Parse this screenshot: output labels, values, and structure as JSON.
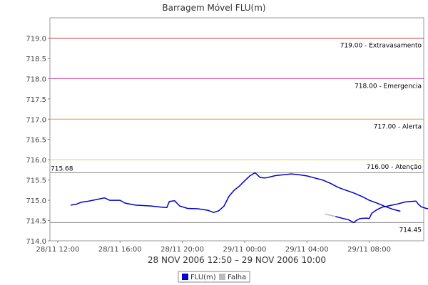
{
  "chart_data": {
    "type": "line",
    "title": "Barragem Móvel FLU(m)",
    "subtitle": "28 NOV 2006 12:50 – 29 NOV 2006 10:00",
    "xlabel": "",
    "ylabel": "",
    "ylim": [
      714.0,
      719.5
    ],
    "xlim": [
      "2006-11-28 11:30",
      "2006-11-29 11:30"
    ],
    "grid": false,
    "legend_placement": "bottom-center",
    "y_ticks": [
      "714.0",
      "714.5",
      "715.0",
      "715.5",
      "716.0",
      "716.5",
      "717.0",
      "717.5",
      "718.0",
      "718.5",
      "719.0"
    ],
    "x_ticks": [
      {
        "label": "28/11 12:00",
        "x": "2006-11-28 12:00"
      },
      {
        "label": "28/11 16:00",
        "x": "2006-11-28 16:00"
      },
      {
        "label": "28/11 20:00",
        "x": "2006-11-28 20:00"
      },
      {
        "label": "29/11 00:00",
        "x": "2006-11-29 00:00"
      },
      {
        "label": "29/11 04:00",
        "x": "2006-11-29 04:00"
      },
      {
        "label": "29/11 08:00",
        "x": "2006-11-29 08:00"
      }
    ],
    "thresholds": [
      {
        "value": 719.0,
        "label": "719.00 - Extravasamento",
        "color": "#cc3333"
      },
      {
        "value": 718.0,
        "label": "718.00 - Emergencia",
        "color": "#cc3399"
      },
      {
        "value": 717.0,
        "label": "717.00 - Alerta",
        "color": "#ee9933"
      },
      {
        "value": 716.0,
        "label": "716.00 - Atenção",
        "color": "#eecc44"
      }
    ],
    "markers": [
      {
        "value": 715.68,
        "label": "715.68",
        "color": "#888888"
      },
      {
        "value": 714.45,
        "label": "714.45",
        "color": "#888888"
      }
    ],
    "series": [
      {
        "name": "FLU(m)",
        "color": "#0000cc",
        "points": [
          [
            "2006-11-28 12:50",
            714.88
          ],
          [
            "2006-11-28 13:10",
            714.9
          ],
          [
            "2006-11-28 13:30",
            714.95
          ],
          [
            "2006-11-28 14:00",
            714.98
          ],
          [
            "2006-11-28 14:30",
            715.02
          ],
          [
            "2006-11-28 15:00",
            715.06
          ],
          [
            "2006-11-28 15:20",
            715.0
          ],
          [
            "2006-11-28 16:00",
            715.0
          ],
          [
            "2006-11-28 16:20",
            714.93
          ],
          [
            "2006-11-28 17:00",
            714.88
          ],
          [
            "2006-11-28 18:00",
            714.86
          ],
          [
            "2006-11-28 18:40",
            714.83
          ],
          [
            "2006-11-28 19:00",
            714.82
          ],
          [
            "2006-11-28 19:10",
            714.97
          ],
          [
            "2006-11-28 19:30",
            714.99
          ],
          [
            "2006-11-28 19:50",
            714.86
          ],
          [
            "2006-11-28 20:20",
            714.8
          ],
          [
            "2006-11-28 21:00",
            714.79
          ],
          [
            "2006-11-28 21:40",
            714.75
          ],
          [
            "2006-11-28 22:00",
            714.7
          ],
          [
            "2006-11-28 22:20",
            714.74
          ],
          [
            "2006-11-28 22:40",
            714.85
          ],
          [
            "2006-11-28 23:00",
            715.1
          ],
          [
            "2006-11-28 23:20",
            715.25
          ],
          [
            "2006-11-28 23:40",
            715.35
          ],
          [
            "2006-11-29 00:00",
            715.48
          ],
          [
            "2006-11-29 00:20",
            715.6
          ],
          [
            "2006-11-29 00:40",
            715.68
          ],
          [
            "2006-11-29 01:00",
            715.56
          ],
          [
            "2006-11-29 01:20",
            715.55
          ],
          [
            "2006-11-29 01:40",
            715.58
          ],
          [
            "2006-11-29 02:00",
            715.61
          ],
          [
            "2006-11-29 02:30",
            715.63
          ],
          [
            "2006-11-29 03:00",
            715.65
          ],
          [
            "2006-11-29 03:30",
            715.63
          ],
          [
            "2006-11-29 04:00",
            715.6
          ],
          [
            "2006-11-29 04:30",
            715.55
          ],
          [
            "2006-11-29 05:00",
            715.5
          ],
          [
            "2006-11-29 05:30",
            715.42
          ],
          [
            "2006-11-29 06:00",
            715.32
          ],
          [
            "2006-11-29 06:30",
            715.25
          ],
          [
            "2006-11-29 07:00",
            715.18
          ],
          [
            "2006-11-29 07:30",
            715.1
          ],
          [
            "2006-11-29 08:00",
            715.0
          ],
          [
            "2006-11-29 08:30",
            714.93
          ],
          [
            "2006-11-29 09:00",
            714.85
          ],
          [
            "2006-11-29 09:30",
            714.78
          ],
          [
            "2006-11-29 10:00",
            714.73
          ]
        ]
      }
    ],
    "series_b": [
      {
        "name": "FLU(m)",
        "points": [
          [
            "2006-11-29 05:50",
            714.6
          ],
          [
            "2006-11-29 06:20",
            714.55
          ],
          [
            "2006-11-29 06:40",
            714.52
          ],
          [
            "2006-11-29 06:55",
            714.47
          ],
          [
            "2006-11-29 07:00",
            714.45
          ],
          [
            "2006-11-29 07:10",
            714.5
          ],
          [
            "2006-11-29 07:25",
            714.55
          ],
          [
            "2006-11-29 07:50",
            714.56
          ],
          [
            "2006-11-29 08:00",
            714.55
          ],
          [
            "2006-11-29 08:10",
            714.68
          ],
          [
            "2006-11-29 08:30",
            714.77
          ],
          [
            "2006-11-29 08:50",
            714.83
          ],
          [
            "2006-11-29 09:20",
            714.87
          ],
          [
            "2006-11-29 09:50",
            714.91
          ],
          [
            "2006-11-29 10:20",
            714.96
          ],
          [
            "2006-11-29 10:40",
            714.97
          ],
          [
            "2006-11-29 11:00",
            714.98
          ],
          [
            "2006-11-29 11:10",
            714.9
          ],
          [
            "2006-11-29 11:20",
            714.84
          ],
          [
            "2006-11-29 11:40",
            714.8
          ],
          [
            "2006-11-29 12:00",
            714.78
          ]
        ]
      }
    ],
    "gap": {
      "name": "Falha",
      "color": "#bbbbbb",
      "points": [
        [
          "2006-11-29 05:10",
          714.66
        ],
        [
          "2006-11-29 05:50",
          714.6
        ]
      ]
    },
    "legend": [
      {
        "label": "FLU(m)",
        "color": "#0000cc"
      },
      {
        "label": "Falha",
        "color": "#bbbbbb"
      }
    ]
  }
}
